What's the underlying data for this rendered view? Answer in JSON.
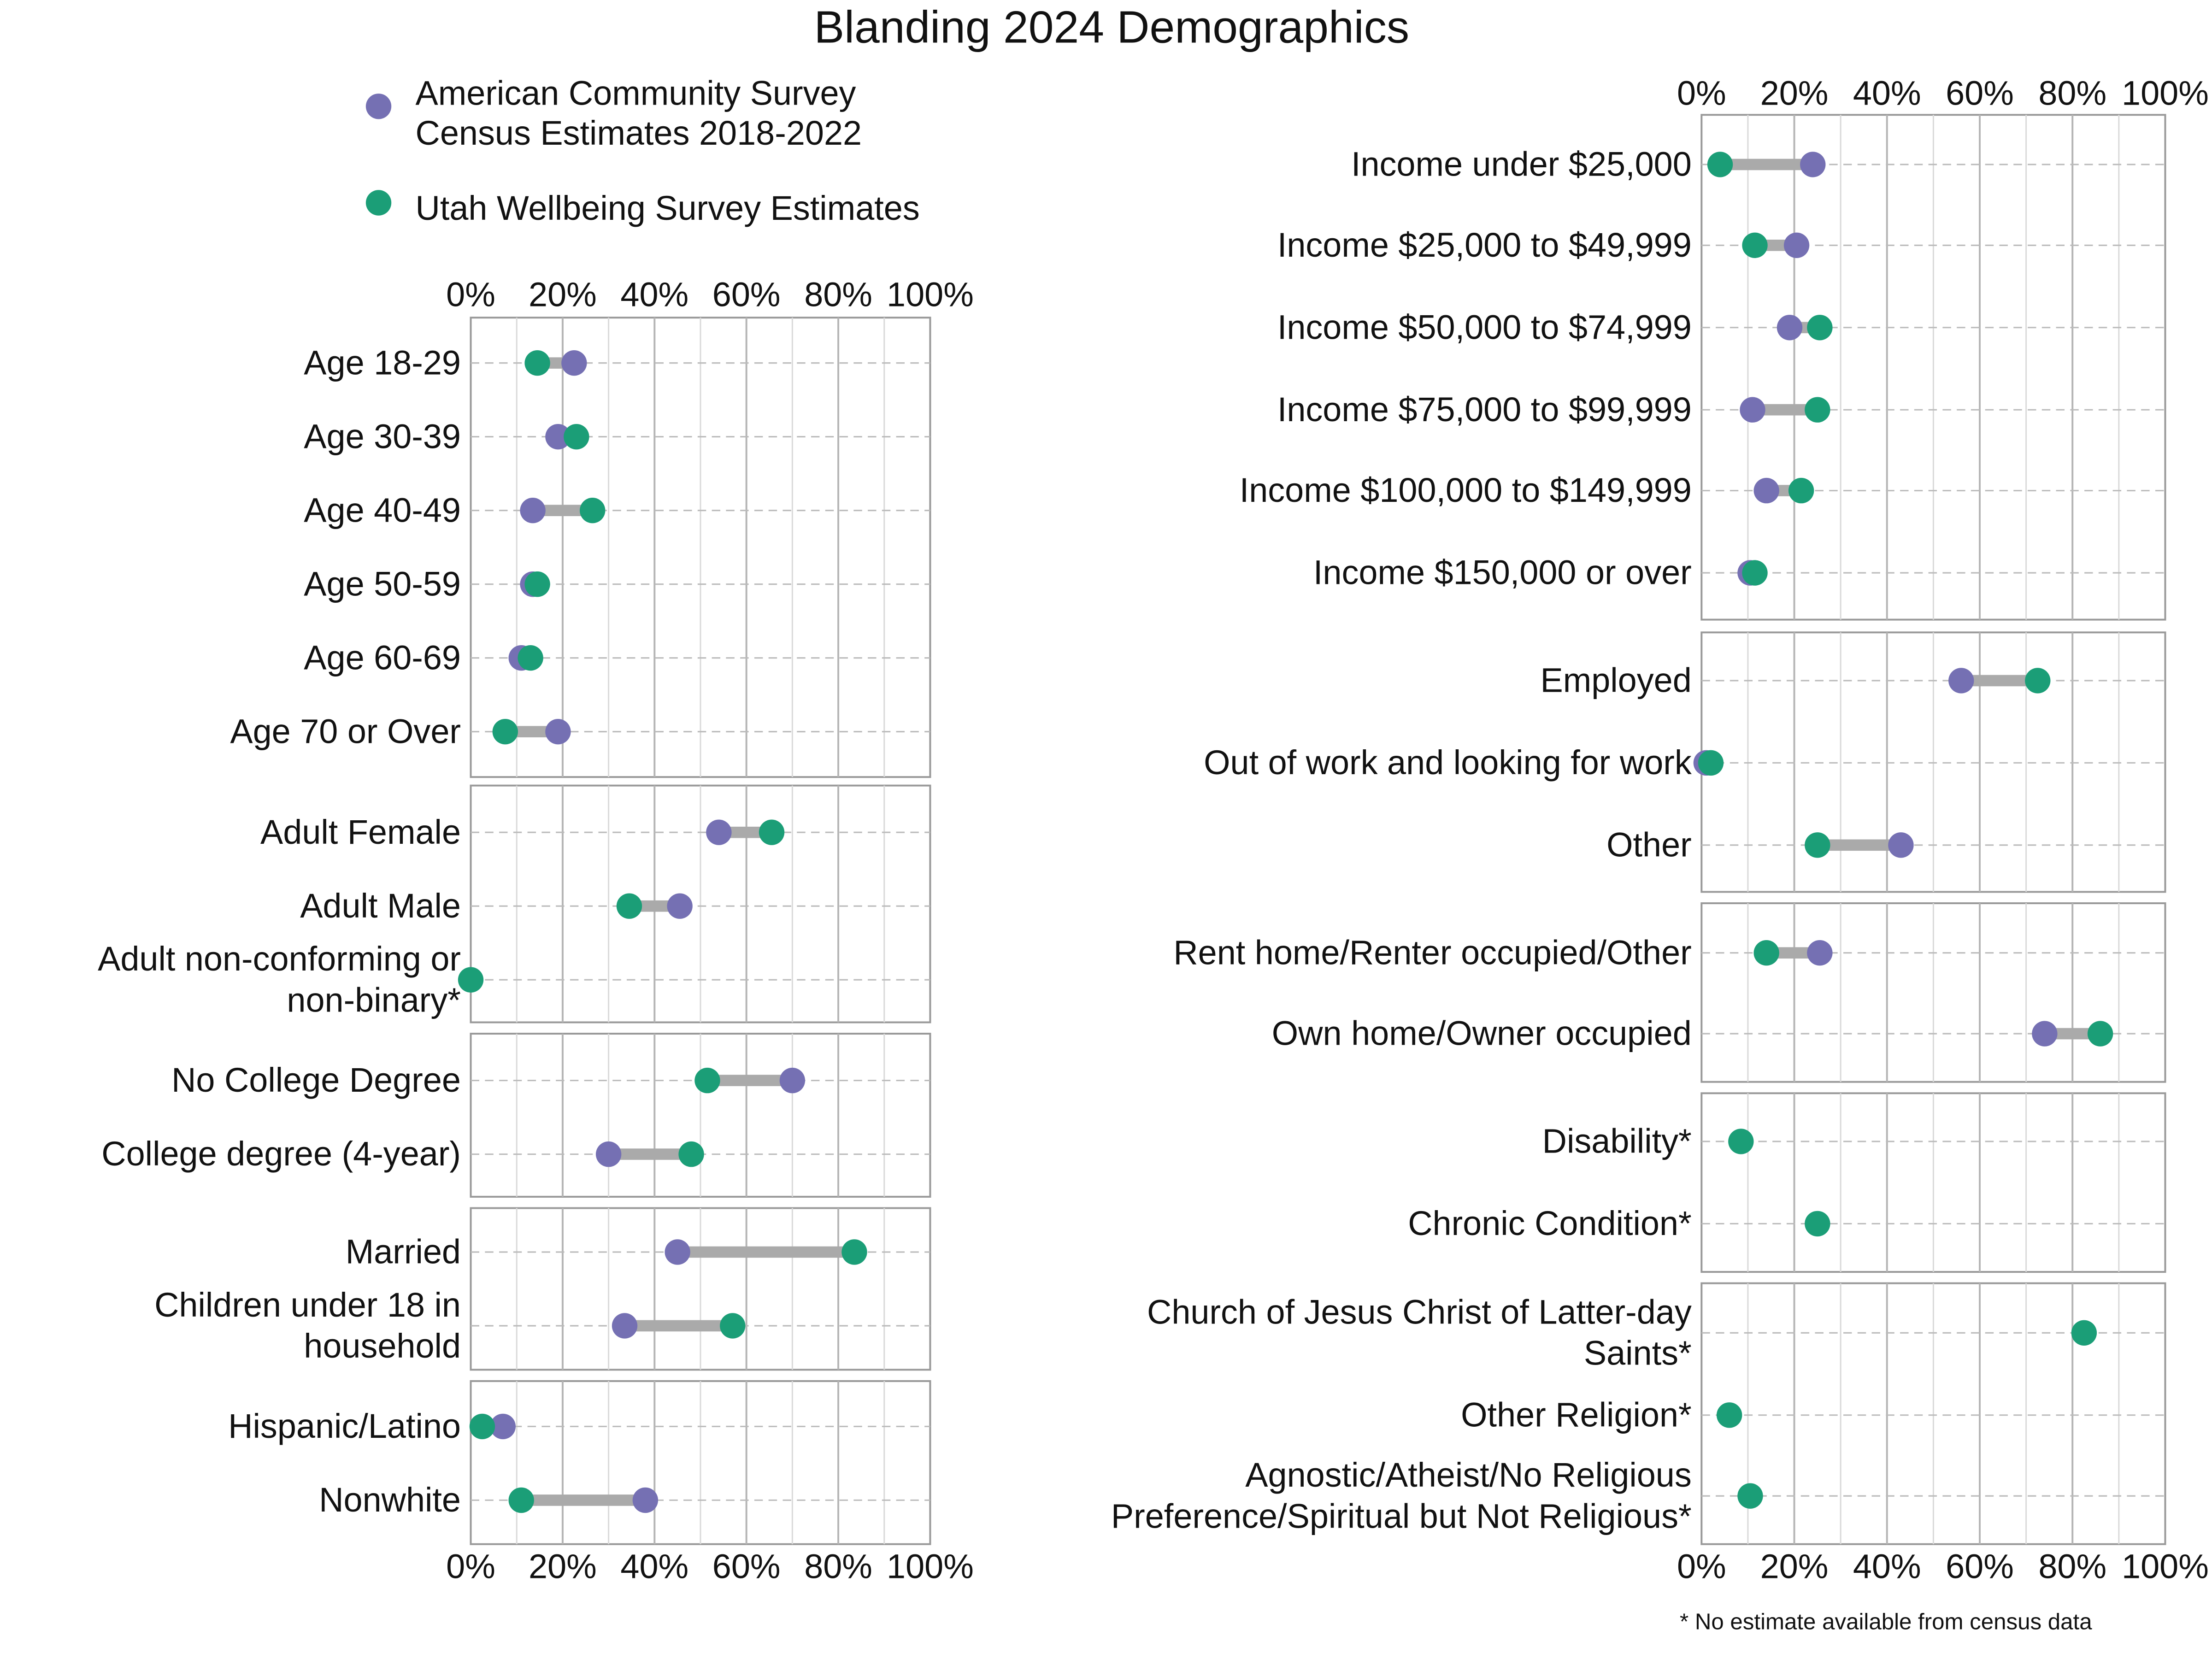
{
  "chart_data": {
    "type": "dumbbell",
    "title": "Blanding 2024 Demographics",
    "xlim": [
      0,
      100
    ],
    "tick_labels": [
      "0%",
      "20%",
      "40%",
      "60%",
      "80%",
      "100%"
    ],
    "grid": true,
    "legend_placement": "top-left",
    "series": [
      {
        "key": "acs",
        "name": "American Community Survey Census Estimates 2018-2022",
        "name_lines": [
          "American Community Survey",
          "Census Estimates 2018-2022"
        ],
        "color": "#7570b3"
      },
      {
        "key": "uws",
        "name": "Utah Wellbeing Survey Estimates",
        "name_lines": [
          "Utah Wellbeing Survey Estimates"
        ],
        "color": "#1b9e77"
      }
    ],
    "footnote": "* No estimate available from census data",
    "left_groups": [
      {
        "rows": [
          {
            "label": [
              "Age 18-29"
            ],
            "acs": 22.5,
            "uws": 14.5
          },
          {
            "label": [
              "Age 30-39"
            ],
            "acs": 19,
            "uws": 23
          },
          {
            "label": [
              "Age 40-49"
            ],
            "acs": 13.5,
            "uws": 26.5
          },
          {
            "label": [
              "Age 50-59"
            ],
            "acs": 13.5,
            "uws": 14.5
          },
          {
            "label": [
              "Age 60-69"
            ],
            "acs": 11,
            "uws": 13
          },
          {
            "label": [
              "Age 70 or Over"
            ],
            "acs": 19,
            "uws": 7.5
          }
        ]
      },
      {
        "rows": [
          {
            "label": [
              "Adult Female"
            ],
            "acs": 54,
            "uws": 65.5
          },
          {
            "label": [
              "Adult Male"
            ],
            "acs": 45.5,
            "uws": 34.5
          },
          {
            "label": [
              "Adult non-conforming or",
              "non-binary*"
            ],
            "acs": null,
            "uws": 0
          }
        ]
      },
      {
        "rows": [
          {
            "label": [
              "No College Degree"
            ],
            "acs": 70,
            "uws": 51.5
          },
          {
            "label": [
              "College degree (4-year)"
            ],
            "acs": 30,
            "uws": 48
          }
        ]
      },
      {
        "rows": [
          {
            "label": [
              "Married"
            ],
            "acs": 45,
            "uws": 83.5
          },
          {
            "label": [
              "Children under 18 in",
              "household"
            ],
            "acs": 33.5,
            "uws": 57
          }
        ]
      },
      {
        "rows": [
          {
            "label": [
              "Hispanic/Latino"
            ],
            "acs": 7,
            "uws": 2.5
          },
          {
            "label": [
              "Nonwhite"
            ],
            "acs": 38,
            "uws": 11
          }
        ]
      }
    ],
    "right_groups": [
      {
        "rows": [
          {
            "label": [
              "Income under $25,000"
            ],
            "acs": 24,
            "uws": 4
          },
          {
            "label": [
              "Income $25,000 to $49,999"
            ],
            "acs": 20.5,
            "uws": 11.5
          },
          {
            "label": [
              "Income $50,000 to $74,999"
            ],
            "acs": 19,
            "uws": 25.5
          },
          {
            "label": [
              "Income $75,000 to $99,999"
            ],
            "acs": 11,
            "uws": 25
          },
          {
            "label": [
              "Income $100,000 to $149,999"
            ],
            "acs": 14,
            "uws": 21.5
          },
          {
            "label": [
              "Income $150,000 or over"
            ],
            "acs": 10.5,
            "uws": 11.5
          }
        ]
      },
      {
        "rows": [
          {
            "label": [
              "Employed"
            ],
            "acs": 56,
            "uws": 72.5
          },
          {
            "label": [
              "Out of work and looking for work"
            ],
            "acs": 1,
            "uws": 2
          },
          {
            "label": [
              "Other"
            ],
            "acs": 43,
            "uws": 25
          }
        ]
      },
      {
        "rows": [
          {
            "label": [
              "Rent home/Renter occupied/Other"
            ],
            "acs": 25.5,
            "uws": 14
          },
          {
            "label": [
              "Own home/Owner occupied"
            ],
            "acs": 74,
            "uws": 86
          }
        ]
      },
      {
        "rows": [
          {
            "label": [
              "Disability*"
            ],
            "acs": null,
            "uws": 8.5
          },
          {
            "label": [
              "Chronic Condition*"
            ],
            "acs": null,
            "uws": 25
          }
        ]
      },
      {
        "rows": [
          {
            "label": [
              "Church of Jesus Christ of Latter-day",
              "Saints*"
            ],
            "acs": null,
            "uws": 82.5
          },
          {
            "label": [
              "Other Religion*"
            ],
            "acs": null,
            "uws": 6
          },
          {
            "label": [
              "Agnostic/Atheist/No Religious",
              "Preference/Spiritual but Not Religious*"
            ],
            "acs": null,
            "uws": 10.5
          }
        ]
      }
    ]
  }
}
